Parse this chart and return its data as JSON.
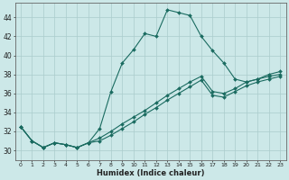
{
  "xlabel": "Humidex (Indice chaleur)",
  "background_color": "#cce8e8",
  "grid_color": "#aacccc",
  "line_color": "#1a6b60",
  "xlim": [
    -0.5,
    23.5
  ],
  "ylim": [
    29.0,
    45.5
  ],
  "yticks": [
    30,
    32,
    34,
    36,
    38,
    40,
    42,
    44
  ],
  "xticks": [
    0,
    1,
    2,
    3,
    4,
    5,
    6,
    7,
    8,
    9,
    10,
    11,
    12,
    13,
    14,
    15,
    16,
    17,
    18,
    19,
    20,
    21,
    22,
    23
  ],
  "x": [
    0,
    1,
    2,
    3,
    4,
    5,
    6,
    7,
    8,
    9,
    10,
    11,
    12,
    13,
    14,
    15,
    16,
    17,
    18,
    19,
    20,
    21,
    22,
    23
  ],
  "y_spike": [
    32.5,
    31.0,
    30.3,
    30.8,
    30.6,
    30.3,
    30.8,
    32.3,
    36.2,
    39.2,
    40.6,
    42.3,
    42.0,
    44.8,
    44.5,
    44.2,
    42.0,
    40.5,
    39.2,
    37.5,
    37.2,
    37.5,
    38.0,
    38.3
  ],
  "y_linear1": [
    32.5,
    31.0,
    30.3,
    30.8,
    30.6,
    30.3,
    30.8,
    31.3,
    32.0,
    32.8,
    33.5,
    34.2,
    35.0,
    35.8,
    36.5,
    37.2,
    37.8,
    36.2,
    36.0,
    36.5,
    37.2,
    37.5,
    37.8,
    38.0
  ],
  "y_linear2": [
    32.5,
    31.0,
    30.3,
    30.8,
    30.6,
    30.3,
    30.8,
    31.0,
    31.6,
    32.3,
    33.0,
    33.8,
    34.5,
    35.3,
    36.0,
    36.7,
    37.4,
    35.8,
    35.6,
    36.2,
    36.8,
    37.2,
    37.5,
    37.8
  ]
}
